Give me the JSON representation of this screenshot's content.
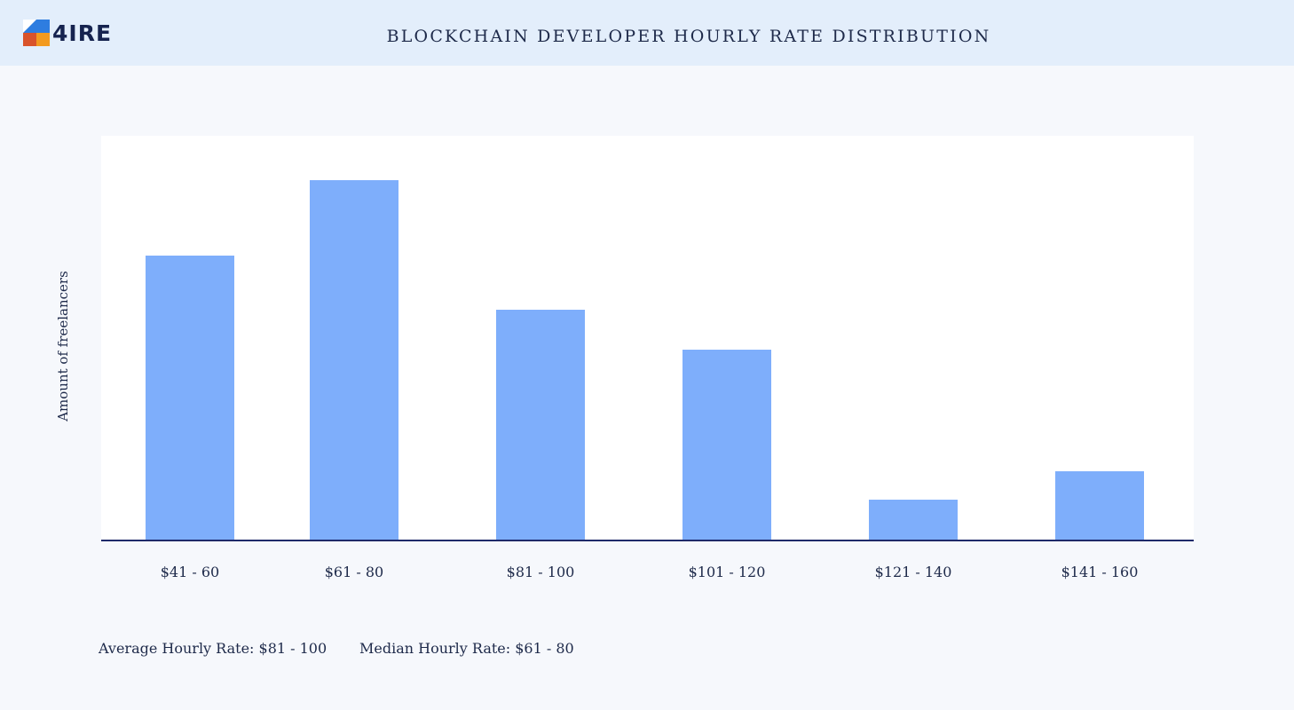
{
  "header": {
    "logo_text": "4IRE",
    "title": "BLOCKCHAIN DEVELOPER HOURLY RATE DISTRIBUTION"
  },
  "colors": {
    "bar": "#7eaefb",
    "axis": "#1e2a6a",
    "header_bg": "#e3eefb",
    "logo_blue": "#2e7de0",
    "logo_orange": "#f39a1f",
    "logo_red": "#d9532b",
    "logo_navy": "#16234f"
  },
  "icons": [
    "4ire-logo-mark"
  ],
  "chart_data": {
    "type": "bar",
    "title": "BLOCKCHAIN DEVELOPER HOURLY RATE DISTRIBUTION",
    "xlabel": "",
    "ylabel": "Amount of freelancers",
    "categories": [
      "$41 - 60",
      "$61 - 80",
      "$81 - 100",
      "$101 - 120",
      "$121 - 140",
      "$141 - 160"
    ],
    "values": [
      321,
      406,
      260,
      215,
      46,
      78
    ],
    "ylim": [
      0,
      456
    ],
    "grid": false,
    "y_ticks_shown": false
  },
  "notes": {
    "average": "Average Hourly Rate: $81 - 100",
    "median": "Median Hourly Rate: $61 - 80"
  }
}
